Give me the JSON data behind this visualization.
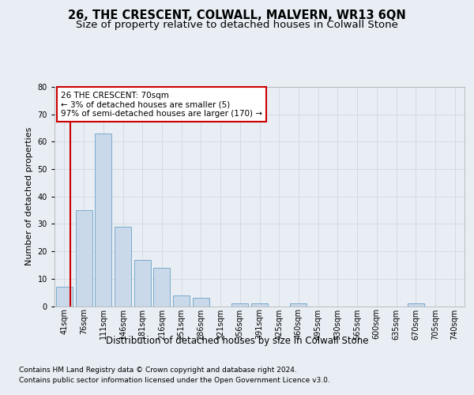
{
  "title": "26, THE CRESCENT, COLWALL, MALVERN, WR13 6QN",
  "subtitle": "Size of property relative to detached houses in Colwall Stone",
  "xlabel": "Distribution of detached houses by size in Colwall Stone",
  "ylabel": "Number of detached properties",
  "footer_line1": "Contains HM Land Registry data © Crown copyright and database right 2024.",
  "footer_line2": "Contains public sector information licensed under the Open Government Licence v3.0.",
  "bin_labels": [
    "41sqm",
    "76sqm",
    "111sqm",
    "146sqm",
    "181sqm",
    "216sqm",
    "251sqm",
    "286sqm",
    "321sqm",
    "356sqm",
    "391sqm",
    "425sqm",
    "460sqm",
    "495sqm",
    "530sqm",
    "565sqm",
    "600sqm",
    "635sqm",
    "670sqm",
    "705sqm",
    "740sqm"
  ],
  "values": [
    7,
    35,
    63,
    29,
    17,
    14,
    4,
    3,
    0,
    1,
    1,
    0,
    1,
    0,
    0,
    0,
    0,
    0,
    1,
    0,
    0
  ],
  "bar_color": "#cad9ea",
  "bar_edge_color": "#7aaacb",
  "bar_linewidth": 0.7,
  "vline_color": "#cc0000",
  "vline_linewidth": 1.5,
  "annotation_text": "26 THE CRESCENT: 70sqm\n← 3% of detached houses are smaller (5)\n97% of semi-detached houses are larger (170) →",
  "annotation_box_color": "#ffffff",
  "annotation_box_edge": "#cc0000",
  "ylim": [
    0,
    80
  ],
  "yticks": [
    0,
    10,
    20,
    30,
    40,
    50,
    60,
    70,
    80
  ],
  "grid_color": "#d0d8e0",
  "background_color": "#e8eef4",
  "axes_background": "#e8eef4",
  "title_fontsize": 10.5,
  "subtitle_fontsize": 9.5,
  "ylabel_fontsize": 8,
  "xlabel_fontsize": 8.5,
  "tick_fontsize": 7,
  "annotation_fontsize": 7.5,
  "footer_fontsize": 6.5
}
